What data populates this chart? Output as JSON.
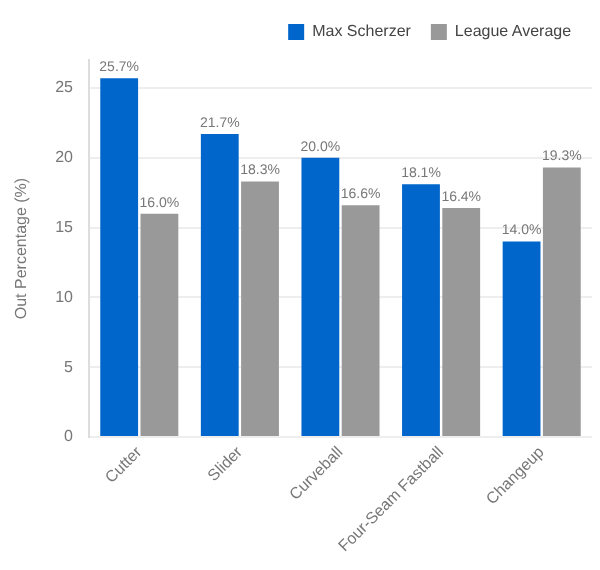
{
  "chart_data": {
    "type": "bar",
    "ylabel": "Out Percentage (%)",
    "categories": [
      "Cutter",
      "Slider",
      "Curveball",
      "Four-Seam Fastball",
      "Changeup"
    ],
    "series": [
      {
        "name": "Max Scherzer",
        "color": "#0066cc",
        "values": [
          25.7,
          21.7,
          20.0,
          18.1,
          14.0
        ],
        "value_labels": [
          "25.7%",
          "21.7%",
          "20.0%",
          "18.1%",
          "14.0%"
        ]
      },
      {
        "name": "League Average",
        "color": "#999999",
        "values": [
          16.0,
          18.3,
          16.6,
          16.4,
          19.3
        ],
        "value_labels": [
          "16.0%",
          "18.3%",
          "16.6%",
          "16.4%",
          "19.3%"
        ]
      }
    ],
    "ylim": [
      0,
      27
    ],
    "yticks": [
      0,
      5,
      10,
      15,
      20,
      25
    ],
    "grid": "y",
    "legend": "top right"
  }
}
